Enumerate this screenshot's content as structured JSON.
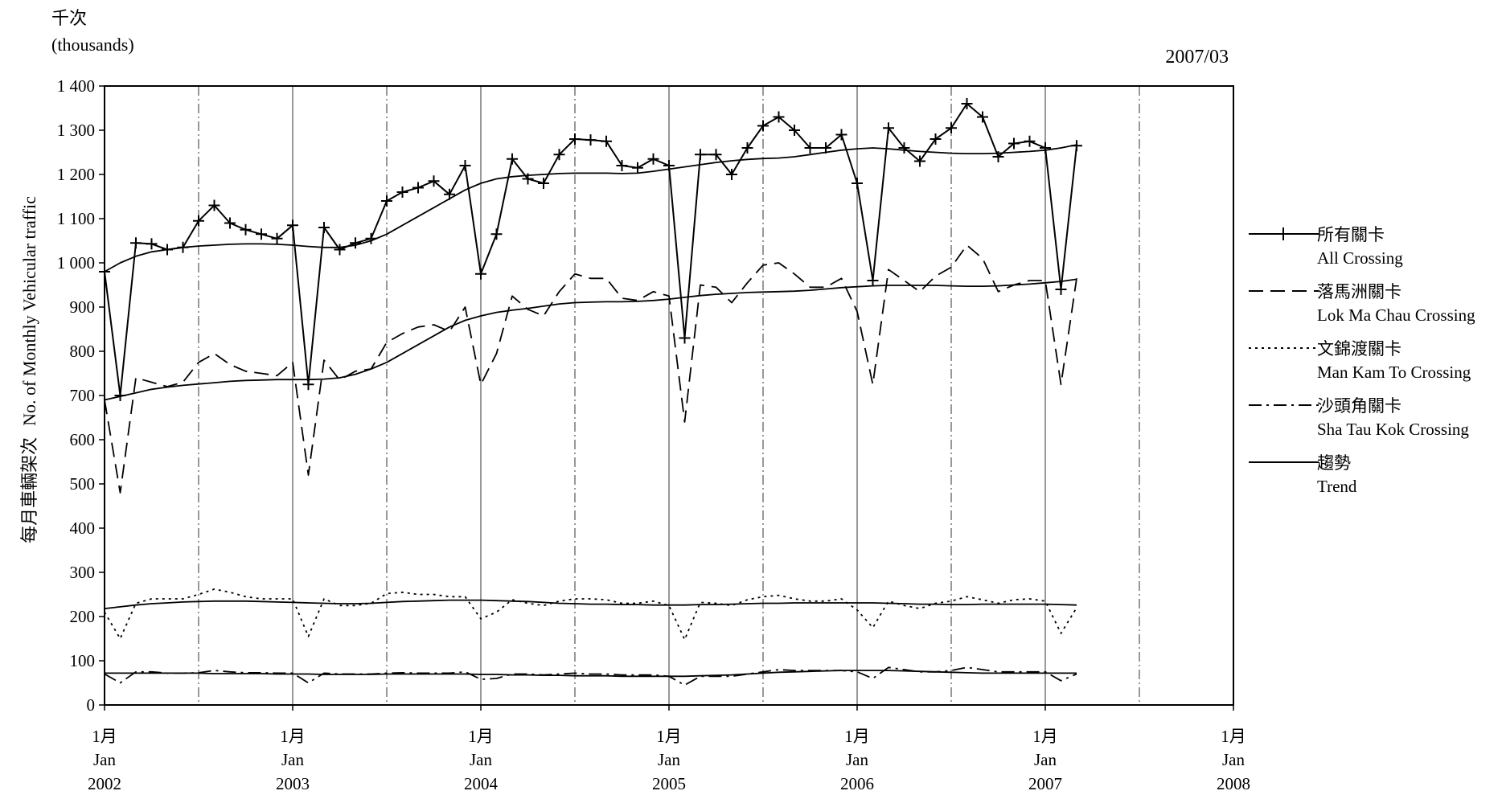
{
  "chart_data": {
    "type": "line",
    "unit_top": "千次",
    "unit_bottom": "(thousands)",
    "date_stamp": "2007/03",
    "ylabel_zh": "每月車輛架次",
    "ylabel_en": "No. of Monthly Vehicular traffic",
    "ylim": [
      0,
      1400
    ],
    "yticks": [
      "0",
      "100",
      "200",
      "300",
      "400",
      "500",
      "600",
      "700",
      "800",
      "900",
      "1 000",
      "1 100",
      "1 200",
      "1 300",
      "1 400"
    ],
    "xlim": [
      "2002-01",
      "2008-01"
    ],
    "xticks": [
      {
        "month_zh": "1月",
        "month_en": "Jan",
        "year": "2002"
      },
      {
        "month_zh": "1月",
        "month_en": "Jan",
        "year": "2003"
      },
      {
        "month_zh": "1月",
        "month_en": "Jan",
        "year": "2004"
      },
      {
        "month_zh": "1月",
        "month_en": "Jan",
        "year": "2005"
      },
      {
        "month_zh": "1月",
        "month_en": "Jan",
        "year": "2006"
      },
      {
        "month_zh": "1月",
        "month_en": "Jan",
        "year": "2007"
      },
      {
        "month_zh": "1月",
        "month_en": "Jan",
        "year": "2008"
      }
    ],
    "grid": "vertical lines at each January (solid) and July (dash-dot)",
    "legend_position": "right",
    "x_start": "2002-01",
    "series": [
      {
        "name_zh": "所有關卡",
        "name_en": "All Crossing",
        "style": "solid-plus",
        "values": [
          980,
          700,
          1045,
          1043,
          1030,
          1035,
          1095,
          1130,
          1090,
          1075,
          1065,
          1055,
          1085,
          725,
          1080,
          1030,
          1045,
          1055,
          1140,
          1160,
          1170,
          1185,
          1155,
          1220,
          975,
          1065,
          1235,
          1190,
          1180,
          1245,
          1280,
          1278,
          1275,
          1220,
          1215,
          1235,
          1220,
          830,
          1245,
          1245,
          1200,
          1260,
          1310,
          1330,
          1300,
          1260,
          1260,
          1290,
          1180,
          960,
          1305,
          1260,
          1230,
          1280,
          1305,
          1360,
          1330,
          1240,
          1270,
          1275,
          1260,
          940,
          1265
        ]
      },
      {
        "name_zh": "落馬洲關卡",
        "name_en": "Lok Ma Chau Crossing",
        "style": "dashed",
        "values": [
          690,
          480,
          740,
          730,
          720,
          730,
          775,
          795,
          770,
          755,
          750,
          745,
          775,
          520,
          780,
          735,
          755,
          760,
          820,
          840,
          855,
          860,
          845,
          900,
          725,
          795,
          925,
          895,
          880,
          935,
          975,
          965,
          965,
          920,
          915,
          935,
          925,
          640,
          950,
          945,
          910,
          955,
          995,
          1000,
          975,
          945,
          945,
          965,
          890,
          725,
          985,
          960,
          935,
          970,
          990,
          1040,
          1010,
          935,
          950,
          960,
          960,
          725,
          965
        ]
      },
      {
        "name_zh": "文錦渡關卡",
        "name_en": "Man Kam To Crossing",
        "style": "dotted",
        "values": [
          210,
          150,
          230,
          240,
          240,
          240,
          250,
          262,
          255,
          245,
          240,
          240,
          240,
          155,
          240,
          225,
          225,
          230,
          252,
          255,
          250,
          250,
          245,
          245,
          195,
          210,
          238,
          230,
          225,
          235,
          240,
          240,
          238,
          230,
          230,
          235,
          225,
          148,
          232,
          230,
          225,
          238,
          245,
          248,
          240,
          235,
          235,
          240,
          215,
          175,
          235,
          225,
          218,
          230,
          235,
          245,
          238,
          230,
          238,
          240,
          235,
          162,
          220
        ]
      },
      {
        "name_zh": "沙頭角關卡",
        "name_en": "Sha Tau Kok Crossing",
        "style": "dash-dot",
        "values": [
          70,
          50,
          75,
          75,
          72,
          72,
          73,
          78,
          75,
          73,
          73,
          72,
          72,
          50,
          72,
          70,
          70,
          70,
          72,
          73,
          72,
          72,
          72,
          75,
          58,
          60,
          70,
          70,
          68,
          70,
          72,
          70,
          70,
          68,
          68,
          68,
          65,
          45,
          65,
          65,
          65,
          70,
          75,
          80,
          78,
          78,
          78,
          78,
          75,
          60,
          85,
          80,
          75,
          75,
          78,
          85,
          80,
          75,
          75,
          75,
          75,
          55,
          70
        ]
      },
      {
        "name_zh": "趨勢",
        "name_en": "Trend",
        "style": "solid",
        "values": [
          980,
          1000,
          1015,
          1025,
          1030,
          1035,
          1038,
          1040,
          1042,
          1043,
          1043,
          1042,
          1040,
          1037,
          1035,
          1035,
          1040,
          1050,
          1065,
          1085,
          1105,
          1125,
          1145,
          1165,
          1180,
          1190,
          1195,
          1198,
          1200,
          1202,
          1203,
          1203,
          1203,
          1202,
          1203,
          1207,
          1212,
          1217,
          1222,
          1227,
          1231,
          1234,
          1236,
          1237,
          1240,
          1245,
          1250,
          1255,
          1258,
          1260,
          1258,
          1255,
          1252,
          1250,
          1248,
          1247,
          1247,
          1248,
          1250,
          1252,
          1255,
          1260,
          1267
        ]
      },
      {
        "name_zh": "",
        "name_en": "",
        "style": "solid",
        "values": [
          690,
          698,
          706,
          714,
          719,
          723,
          726,
          729,
          732,
          734,
          735,
          736,
          736,
          736,
          737,
          740,
          748,
          760,
          775,
          795,
          815,
          835,
          855,
          870,
          880,
          888,
          893,
          897,
          902,
          907,
          910,
          911,
          912,
          912,
          913,
          915,
          918,
          922,
          926,
          929,
          931,
          933,
          934,
          935,
          936,
          938,
          941,
          944,
          946,
          948,
          949,
          949,
          949,
          949,
          948,
          947,
          947,
          948,
          950,
          952,
          955,
          958,
          963
        ]
      },
      {
        "name_zh": "",
        "name_en": "",
        "style": "solid",
        "values": [
          218,
          222,
          226,
          229,
          231,
          233,
          234,
          235,
          235,
          235,
          234,
          233,
          232,
          231,
          230,
          229,
          229,
          230,
          232,
          234,
          235,
          236,
          237,
          237,
          237,
          236,
          235,
          234,
          232,
          230,
          229,
          228,
          228,
          227,
          227,
          226,
          226,
          226,
          227,
          227,
          228,
          229,
          230,
          230,
          231,
          231,
          231,
          231,
          231,
          231,
          230,
          229,
          228,
          228,
          227,
          227,
          228,
          228,
          228,
          228,
          228,
          227,
          226
        ]
      },
      {
        "name_zh": "",
        "name_en": "",
        "style": "solid",
        "values": [
          72,
          72,
          72,
          72,
          72,
          72,
          72,
          71,
          71,
          71,
          71,
          70,
          70,
          70,
          69,
          69,
          69,
          69,
          70,
          70,
          70,
          70,
          70,
          70,
          69,
          69,
          68,
          68,
          67,
          67,
          66,
          66,
          66,
          65,
          65,
          65,
          65,
          65,
          66,
          67,
          68,
          70,
          72,
          74,
          75,
          76,
          77,
          78,
          78,
          78,
          78,
          77,
          76,
          75,
          74,
          73,
          72,
          72,
          72,
          72,
          72,
          72,
          72
        ]
      }
    ]
  }
}
